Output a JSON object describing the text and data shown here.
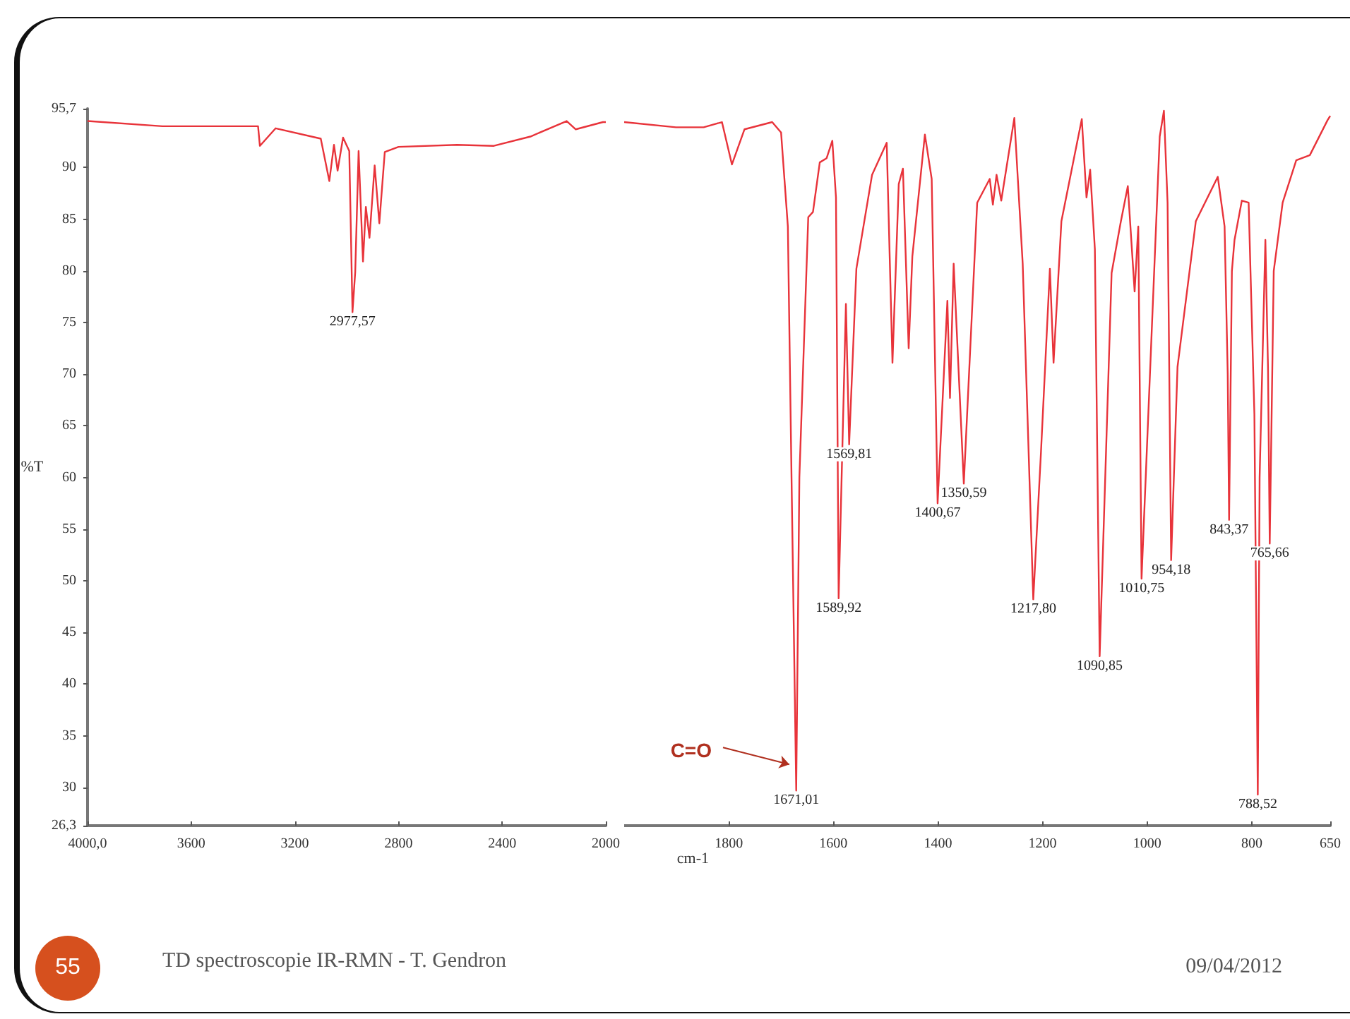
{
  "chart_data": [
    {
      "type": "line",
      "ylabel": "%T",
      "xlim": [
        4000,
        2000
      ],
      "ylim": [
        26.3,
        95.7
      ],
      "xticks": [
        {
          "value": 4000,
          "label": "4000,0"
        },
        3600,
        3200,
        2800,
        2400,
        2000
      ],
      "yticks": [
        {
          "value": 26.3,
          "label": "26,3"
        },
        30,
        35,
        40,
        45,
        50,
        55,
        60,
        65,
        70,
        75,
        80,
        85,
        90,
        {
          "value": 95.7,
          "label": "95,7"
        }
      ],
      "grid": false,
      "marker": "none",
      "line_style": "solid",
      "series": [
        {
          "color": "#e8333a",
          "x": [
            4000,
            3711,
            3342,
            3335,
            3274,
            3100,
            3067,
            3049,
            3035,
            3014,
            2990,
            2977.57,
            2967,
            2954,
            2937,
            2926,
            2912,
            2892,
            2874,
            2853,
            2800,
            2574,
            2432,
            2291,
            2151,
            2116,
            2011,
            2000
          ],
          "values": [
            94.5,
            94.0,
            94.0,
            92.1,
            93.8,
            92.8,
            88.7,
            92.2,
            89.7,
            92.9,
            91.6,
            76.0,
            79.9,
            91.6,
            80.9,
            86.2,
            83.2,
            90.2,
            84.6,
            91.5,
            92.0,
            92.2,
            92.1,
            93.0,
            94.5,
            93.7,
            94.4,
            94.4
          ]
        }
      ],
      "annotations": [
        {
          "text": "2977,57",
          "x": 2977.57,
          "y": 76.0
        },
        "55",
        "TD spectroscopie IR-RMN - T. Gendron"
      ]
    },
    {
      "type": "line",
      "xlabel": "cm-1",
      "xlim": [
        2000,
        650
      ],
      "ylim": [
        26.3,
        95.7
      ],
      "xticks": [
        1800,
        1600,
        1400,
        1200,
        1000,
        800,
        650
      ],
      "tick_labels": "x",
      "grid": false,
      "marker": "none",
      "line_style": "solid",
      "series": [
        {
          "color": "#e8333a",
          "x": [
            2000,
            1901,
            1848,
            1813,
            1794,
            1770,
            1717,
            1700,
            1687,
            1680,
            1671.01,
            1665,
            1648,
            1639,
            1626,
            1613,
            1602,
            1595,
            1589.92,
            1576,
            1569.81,
            1556,
            1526,
            1498,
            1487,
            1475,
            1467,
            1456,
            1449,
            1425,
            1412,
            1400.67,
            1382,
            1377,
            1370,
            1350.59,
            1325,
            1301,
            1295,
            1288,
            1279,
            1254,
            1238,
            1217.8,
            1203,
            1186,
            1179,
            1164,
            1125,
            1116,
            1109,
            1100,
            1090.85,
            1068,
            1051,
            1037,
            1024,
            1017,
            1010.75,
            976,
            968,
            961,
            954.18,
            942,
            907,
            865,
            852,
            846,
            843.37,
            838,
            833,
            819,
            806,
            795,
            788.52,
            785,
            774,
            769,
            765.66,
            758,
            741,
            715,
            689,
            655,
            650
          ],
          "values": [
            94.4,
            93.9,
            93.9,
            94.4,
            90.3,
            93.7,
            94.4,
            93.4,
            84.3,
            60,
            29.7,
            60,
            85.2,
            85.7,
            90.5,
            90.9,
            92.6,
            87.1,
            48.3,
            76.8,
            63.2,
            80.2,
            89.3,
            92.4,
            71.1,
            88.4,
            89.9,
            72.5,
            81.4,
            93.2,
            88.9,
            57.5,
            77.1,
            67.7,
            80.7,
            59.4,
            86.6,
            88.9,
            86.4,
            89.3,
            86.8,
            94.8,
            80.7,
            48.2,
            62.5,
            80.2,
            71.1,
            84.8,
            94.7,
            87.1,
            89.8,
            82.1,
            42.7,
            79.8,
            84.6,
            88.2,
            78,
            84.3,
            50.2,
            93.0,
            95.5,
            86.6,
            52.0,
            70.7,
            84.8,
            89.1,
            84.3,
            70,
            55.9,
            80,
            83,
            86.8,
            86.6,
            66.1,
            29.3,
            60,
            83,
            70.7,
            53.6,
            80,
            86.6,
            90.7,
            91.2,
            94.6,
            95.0
          ]
        }
      ],
      "annotations": [
        {
          "text": "1671,01",
          "x": 1671.01,
          "y": 29.7
        },
        {
          "text": "1589,92",
          "x": 1589.92,
          "y": 48.3
        },
        {
          "text": "1569,81",
          "x": 1569.81,
          "y": 63.2
        },
        {
          "text": "1400,67",
          "x": 1400.67,
          "y": 57.5
        },
        {
          "text": "1350,59",
          "x": 1350.59,
          "y": 59.4
        },
        {
          "text": "1217,80",
          "x": 1217.8,
          "y": 48.2
        },
        {
          "text": "1090,85",
          "x": 1090.85,
          "y": 42.7
        },
        {
          "text": "1010,75",
          "x": 1010.75,
          "y": 50.2
        },
        {
          "text": "954,18",
          "x": 954.18,
          "y": 52.0
        },
        {
          "text": "843,37",
          "x": 843.37,
          "y": 55.9
        },
        {
          "text": "788,52",
          "x": 788.52,
          "y": 29.3
        },
        {
          "text": "765,66",
          "x": 765.66,
          "y": 53.6
        },
        {
          "text": "C=O",
          "x": 1676,
          "y": 32.5
        },
        "09/04/2012"
      ]
    }
  ]
}
